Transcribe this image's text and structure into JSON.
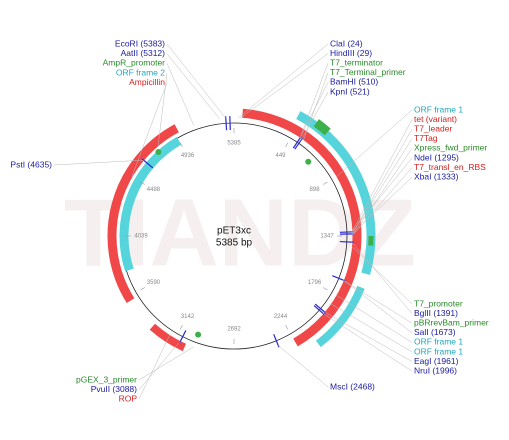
{
  "watermark": "TIANDZ",
  "map": {
    "name": "pET3xc",
    "size": "5385 bp",
    "ruler": [
      5385,
      449,
      898,
      1347,
      1796,
      2244,
      2692,
      3142,
      3590,
      4039,
      4488,
      4936
    ]
  },
  "labels": {
    "top_left": [
      {
        "text": "EcoRI (5383)",
        "color": "#1a1a9c"
      },
      {
        "text": "AatII (5312)",
        "color": "#1a1a9c"
      },
      {
        "text": "AmpR_promoter",
        "color": "#2a8a2a"
      },
      {
        "text": "ORF frame 2",
        "color": "#1fa6b8"
      },
      {
        "text": "Ampicillin",
        "color": "#d42020"
      }
    ],
    "left": [
      {
        "text": "PstI (4635)",
        "color": "#1a1a9c"
      }
    ],
    "top_right": [
      {
        "text": "ClaI (24)",
        "color": "#1a1a9c"
      },
      {
        "text": "HindIII (29)",
        "color": "#1a1a9c"
      },
      {
        "text": "T7_terminator",
        "color": "#2a8a2a"
      },
      {
        "text": "T7_Terminal_primer",
        "color": "#2a8a2a"
      },
      {
        "text": "BamHI (510)",
        "color": "#1a1a9c"
      },
      {
        "text": "KpnI (521)",
        "color": "#1a1a9c"
      }
    ],
    "right": [
      {
        "text": "ORF frame 1",
        "color": "#1fa6b8"
      },
      {
        "text": "tet (variant)",
        "color": "#d42020"
      },
      {
        "text": "T7_leader",
        "color": "#d42020"
      },
      {
        "text": "T7Tag",
        "color": "#d42020"
      },
      {
        "text": "Xpress_fwd_primer",
        "color": "#2a8a2a"
      },
      {
        "text": "NdeI (1295)",
        "color": "#1a1a9c"
      },
      {
        "text": "T7_transl_en_RBS",
        "color": "#d42020"
      },
      {
        "text": "XbaI (1333)",
        "color": "#1a1a9c"
      }
    ],
    "bottom_right": [
      {
        "text": "T7_promoter",
        "color": "#2a8a2a"
      },
      {
        "text": "BglII (1391)",
        "color": "#1a1a9c"
      },
      {
        "text": "pBRrevBam_primer",
        "color": "#2a8a2a"
      },
      {
        "text": "SalI (1673)",
        "color": "#1a1a9c"
      },
      {
        "text": "ORF frame 1",
        "color": "#1fa6b8"
      },
      {
        "text": "ORF frame 1",
        "color": "#1fa6b8"
      },
      {
        "text": "EagI (1961)",
        "color": "#1a1a9c"
      },
      {
        "text": "NruI (1996)",
        "color": "#1a1a9c"
      }
    ],
    "bottom": [
      {
        "text": "MscI (2468)",
        "color": "#1a1a9c"
      }
    ],
    "bottom_left": [
      {
        "text": "pGEX_3_primer",
        "color": "#2a8a2a"
      },
      {
        "text": "PvuII (3088)",
        "color": "#1a1a9c"
      },
      {
        "text": "ROP",
        "color": "#d42020"
      }
    ]
  }
}
